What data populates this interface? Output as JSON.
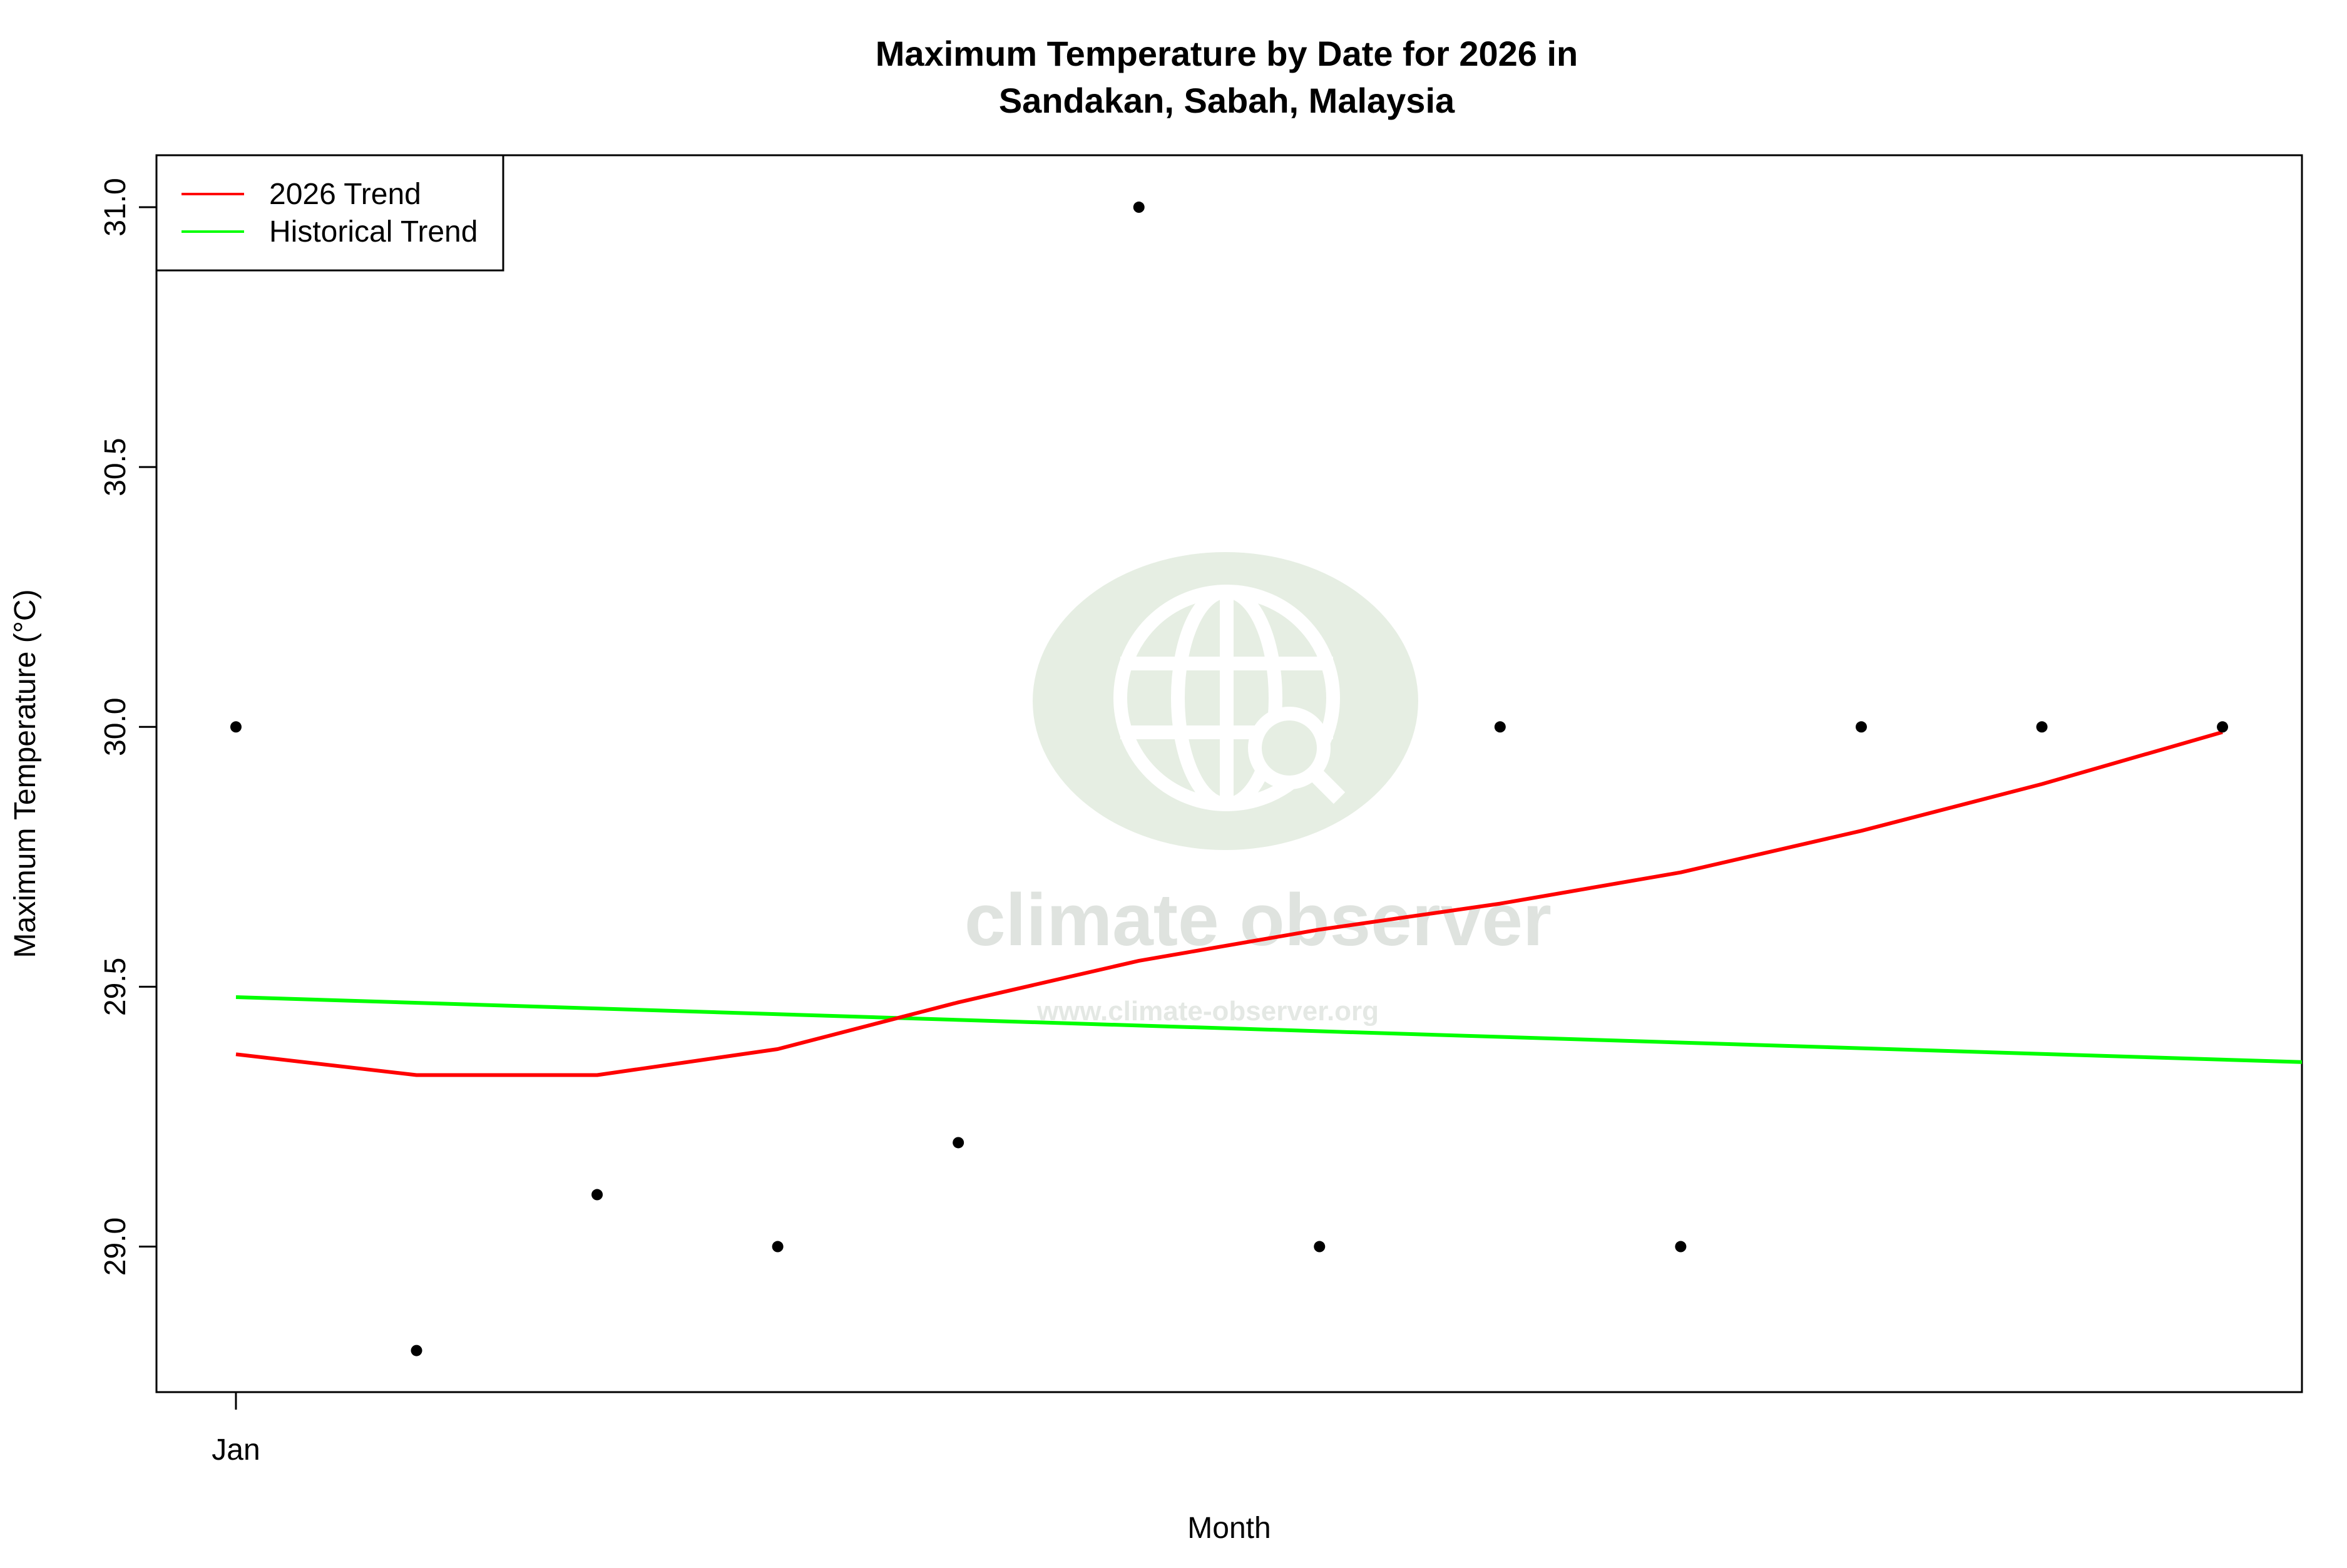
{
  "chart_data": {
    "type": "scatter",
    "title_line1": "Maximum Temperature by Date for 2026 in",
    "title_line2": "Sandakan, Sabah, Malaysia",
    "xlabel": "Month",
    "ylabel": "Maximum Temperature (°C)",
    "x_tick_labels": [
      "Jan"
    ],
    "y_ticks": [
      29.0,
      29.5,
      30.0,
      30.5,
      31.0
    ],
    "y_tick_labels": [
      "29.0",
      "29.5",
      "30.0",
      "30.5",
      "31.0"
    ],
    "ylim": [
      28.72,
      31.1
    ],
    "x_index_range": [
      0.56,
      12.44
    ],
    "grid": false,
    "legend_position": "top-left",
    "legend": [
      {
        "label": "2026 Trend",
        "color": "#ff0000"
      },
      {
        "label": "Historical Trend",
        "color": "#00ff00"
      }
    ],
    "observations": {
      "x_index": [
        1,
        2,
        3,
        4,
        5,
        6,
        7,
        8,
        9,
        10,
        11,
        12
      ],
      "y": [
        30.0,
        28.8,
        29.1,
        29.0,
        29.2,
        31.0,
        29.0,
        30.0,
        29.0,
        30.0,
        30.0,
        30.0
      ],
      "color": "#000000"
    },
    "series": [
      {
        "name": "2026 Trend",
        "color": "#ff0000",
        "x_index": [
          1,
          2,
          3,
          4,
          5,
          6,
          7,
          8,
          9,
          10,
          11,
          12
        ],
        "y": [
          29.37,
          29.33,
          29.33,
          29.38,
          29.47,
          29.55,
          29.61,
          29.66,
          29.72,
          29.8,
          29.89,
          29.99
        ]
      },
      {
        "name": "Historical Trend",
        "color": "#00ff00",
        "x_index": [
          1,
          12.44
        ],
        "y": [
          29.48,
          29.355
        ]
      }
    ]
  },
  "watermark": {
    "text": "climate observer",
    "url": "www.climate-observer.org",
    "icon": "globe-search-icon",
    "color": "#dfe8dc"
  }
}
